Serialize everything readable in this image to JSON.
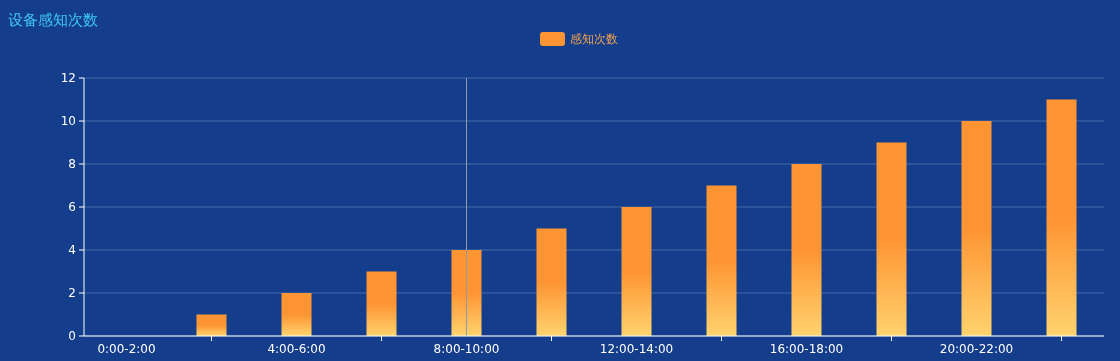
{
  "chart_data": {
    "type": "bar",
    "title": "设备感知次数",
    "categories": [
      "0:00-2:00",
      null,
      "4:00-6:00",
      null,
      "8:00-10:00",
      null,
      "12:00-14:00",
      null,
      "16:00-18:00",
      null,
      "20:00-22:00",
      null
    ],
    "series": [
      {
        "name": "感知次数",
        "color": "#ff9433",
        "values": [
          0,
          1,
          2,
          3,
          4,
          5,
          6,
          7,
          8,
          9,
          10,
          11
        ]
      }
    ],
    "ylim": [
      0,
      12
    ],
    "yticks": [
      0,
      2,
      4,
      6,
      8,
      10,
      12
    ],
    "grid": "y",
    "legend": "top",
    "ref_lines": [
      {
        "axis": "x",
        "value": "8:00-10:00",
        "color": "#8f9bb3"
      }
    ]
  }
}
